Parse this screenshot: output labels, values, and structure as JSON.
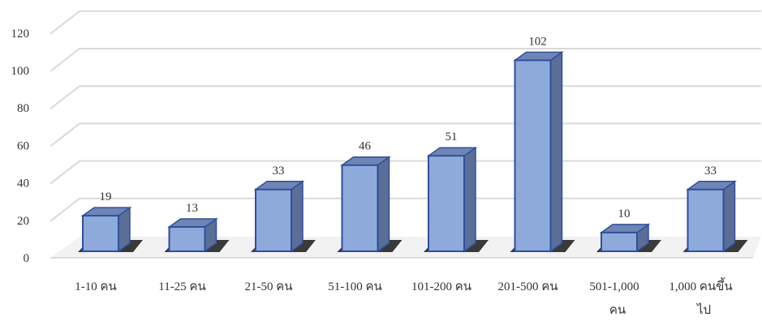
{
  "chart_data": {
    "type": "bar",
    "categories": [
      [
        "1-10 คน"
      ],
      [
        "11-25 คน"
      ],
      [
        "21-50 คน"
      ],
      [
        "51-100 คน"
      ],
      [
        "101-200 คน"
      ],
      [
        "201-500 คน"
      ],
      [
        "501-1,000",
        "คน"
      ],
      [
        "1,000 คนขึ้น",
        "ไป"
      ]
    ],
    "values": [
      19,
      13,
      33,
      46,
      51,
      102,
      10,
      33
    ],
    "data_labels": [
      "19",
      "13",
      "33",
      "46",
      "51",
      "102",
      "10",
      "33"
    ],
    "ylim": [
      0,
      120
    ],
    "yticks": [
      0,
      20,
      40,
      60,
      80,
      100,
      120
    ],
    "grid": true,
    "style": "3d-column",
    "colors": {
      "bar_front": "#8eaadb",
      "bar_side": "#5b6e96",
      "bar_top": "#6f86b4",
      "bar_edge": "#2f4f9e",
      "grid": "#d9d9d9",
      "floor_shadow": "#1a1a1a",
      "text": "#333333"
    }
  }
}
